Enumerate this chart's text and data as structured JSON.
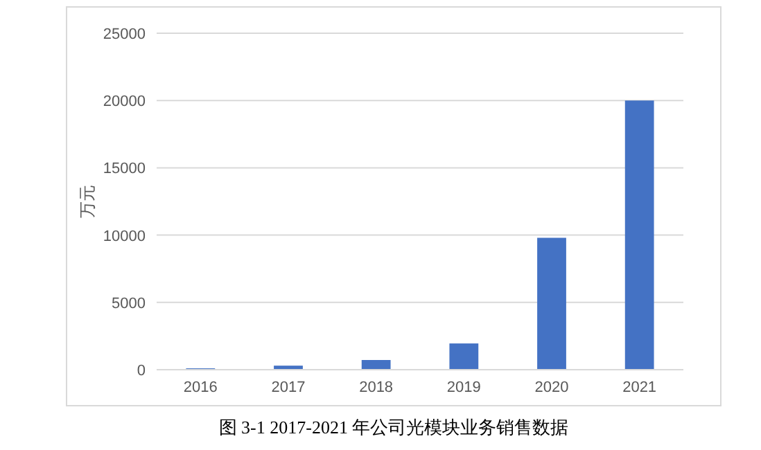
{
  "chart_data": {
    "type": "bar",
    "title": "图 3-1 2017-2021 年公司光模块业务销售数据",
    "ylabel": "万元",
    "categories": [
      "2016",
      "2017",
      "2018",
      "2019",
      "2020",
      "2021"
    ],
    "values": [
      100,
      300,
      720,
      1950,
      9800,
      20000
    ],
    "color": "#4472c4",
    "ylim": [
      0,
      25000
    ],
    "yticks": [
      0,
      5000,
      10000,
      15000,
      20000,
      25000
    ],
    "grid": "y"
  }
}
